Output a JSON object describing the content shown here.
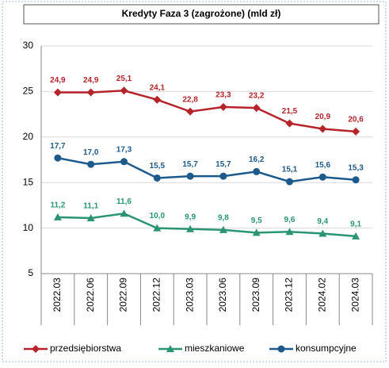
{
  "chart_data": {
    "type": "line",
    "title": "Kredyty Faza 3 (zagrożone) (mld zł)",
    "categories": [
      "2022.03",
      "2022.06",
      "2022.09",
      "2022.12",
      "2023.03",
      "2023.06",
      "2023.09",
      "2023.12",
      "2024.02",
      "2024.03"
    ],
    "series": [
      {
        "name": "przedsiębiorstwa",
        "color": "#b5242a",
        "marker": "diamond",
        "values": [
          24.9,
          24.9,
          25.1,
          24.1,
          22.8,
          23.3,
          23.2,
          21.5,
          20.9,
          20.6
        ],
        "value_labels": [
          "24,9",
          "24,9",
          "25,1",
          "24,1",
          "22,8",
          "23,3",
          "23,2",
          "21,5",
          "20,9",
          "20,6"
        ]
      },
      {
        "name": "mieszkaniowe",
        "color": "#2a9475",
        "marker": "triangle",
        "values": [
          11.2,
          11.1,
          11.6,
          10.0,
          9.9,
          9.8,
          9.5,
          9.6,
          9.4,
          9.1
        ],
        "value_labels": [
          "11,2",
          "11,1",
          "11,6",
          "10,0",
          "9,9",
          "9,8",
          "9,5",
          "9,6",
          "9,4",
          "9,1"
        ]
      },
      {
        "name": "konsumpcyjne",
        "color": "#1d5a8c",
        "marker": "circle",
        "values": [
          17.7,
          17.0,
          17.3,
          15.5,
          15.7,
          15.7,
          16.2,
          15.1,
          15.6,
          15.3
        ],
        "value_labels": [
          "17,7",
          "17,0",
          "17,3",
          "15,5",
          "15,7",
          "15,7",
          "16,2",
          "15,1",
          "15,6",
          "15,3"
        ]
      }
    ],
    "ylim": [
      5,
      30
    ],
    "yticks": [
      5,
      10,
      15,
      20,
      25,
      30
    ],
    "grid": true,
    "legend": "bottom"
  }
}
